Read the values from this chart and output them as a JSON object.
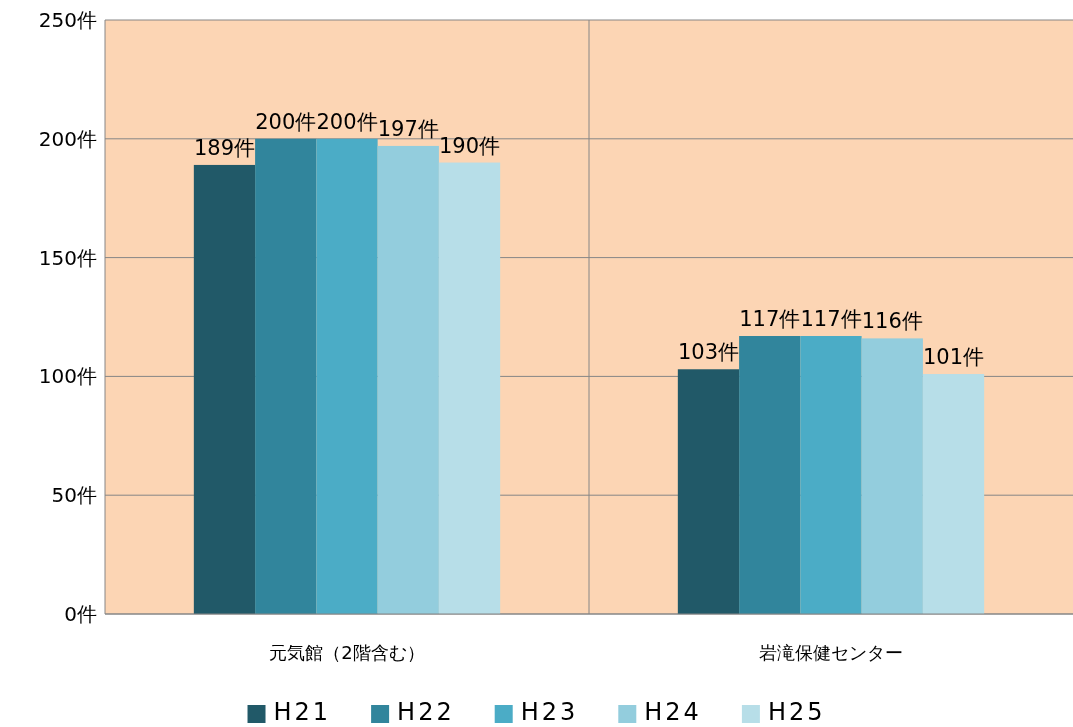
{
  "chart_data": {
    "type": "bar",
    "categories": [
      "元気館（2階含む）",
      "岩滝保健センター"
    ],
    "series": [
      {
        "name": "H21",
        "color": "#215968",
        "values": [
          189,
          103
        ],
        "value_labels": [
          "189件",
          "103件"
        ]
      },
      {
        "name": "H22",
        "color": "#31859c",
        "values": [
          200,
          117
        ],
        "value_labels": [
          "200件",
          "117件"
        ]
      },
      {
        "name": "H23",
        "color": "#4bacc6",
        "values": [
          200,
          117
        ],
        "value_labels": [
          "200件",
          "117件"
        ]
      },
      {
        "name": "H24",
        "color": "#93cddd",
        "values": [
          197,
          116
        ],
        "value_labels": [
          "197件",
          "116件"
        ]
      },
      {
        "name": "H25",
        "color": "#b7dee8",
        "values": [
          190,
          101
        ],
        "value_labels": [
          "190件",
          "101件"
        ]
      }
    ],
    "ylim": [
      0,
      250
    ],
    "yticks": [
      {
        "value": 0,
        "label": "0件"
      },
      {
        "value": 50,
        "label": "50件"
      },
      {
        "value": 100,
        "label": "100件"
      },
      {
        "value": 150,
        "label": "150件"
      },
      {
        "value": 200,
        "label": "200件"
      },
      {
        "value": 250,
        "label": "250件"
      }
    ],
    "grid": true,
    "legend": "bottom"
  }
}
